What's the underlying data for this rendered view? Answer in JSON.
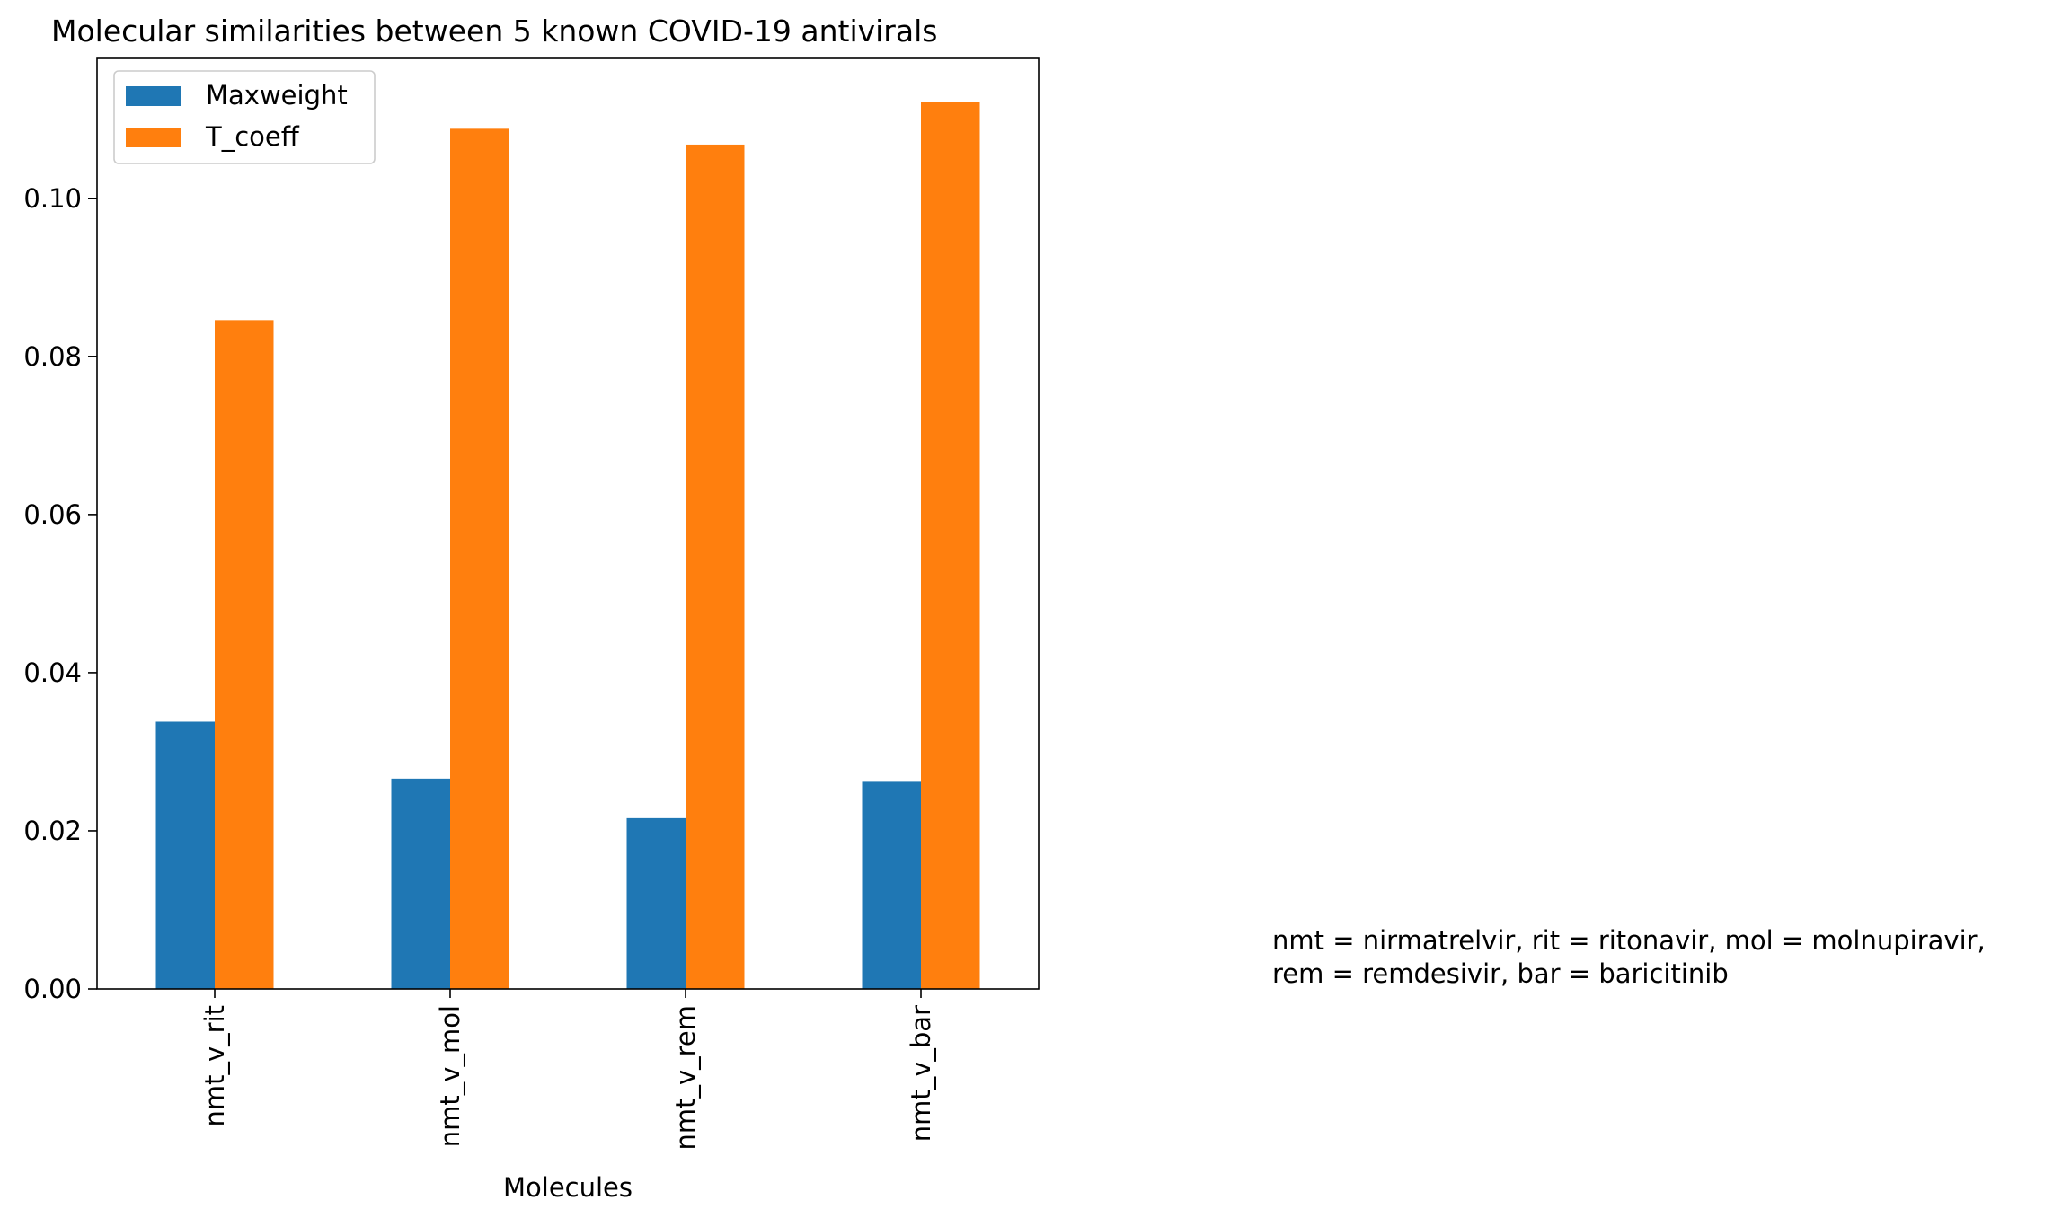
{
  "chart_data": {
    "type": "bar",
    "title": "Molecular similarities between 5 known COVID-19 antivirals",
    "xlabel": "Molecules",
    "ylabel": "",
    "categories": [
      "nmt_v_rit",
      "nmt_v_mol",
      "nmt_v_rem",
      "nmt_v_bar"
    ],
    "series": [
      {
        "name": "Maxweight",
        "color": "#1f77b4",
        "values": [
          0.0338,
          0.0266,
          0.0216,
          0.0262
        ]
      },
      {
        "name": "T_coeff",
        "color": "#ff7f0e",
        "values": [
          0.0846,
          0.1088,
          0.1068,
          0.1122
        ]
      }
    ],
    "ylim": [
      0,
      0.1177
    ],
    "yticks": [
      "0.00",
      "0.02",
      "0.04",
      "0.06",
      "0.08",
      "0.10"
    ],
    "legend_position": "top-left",
    "grid": false
  },
  "annotation": {
    "lines": [
      "nmt = nirmatrelvir, rit = ritonavir, mol = molnupiravir,",
      "rem = remdesivir, bar = baricitinib"
    ]
  }
}
